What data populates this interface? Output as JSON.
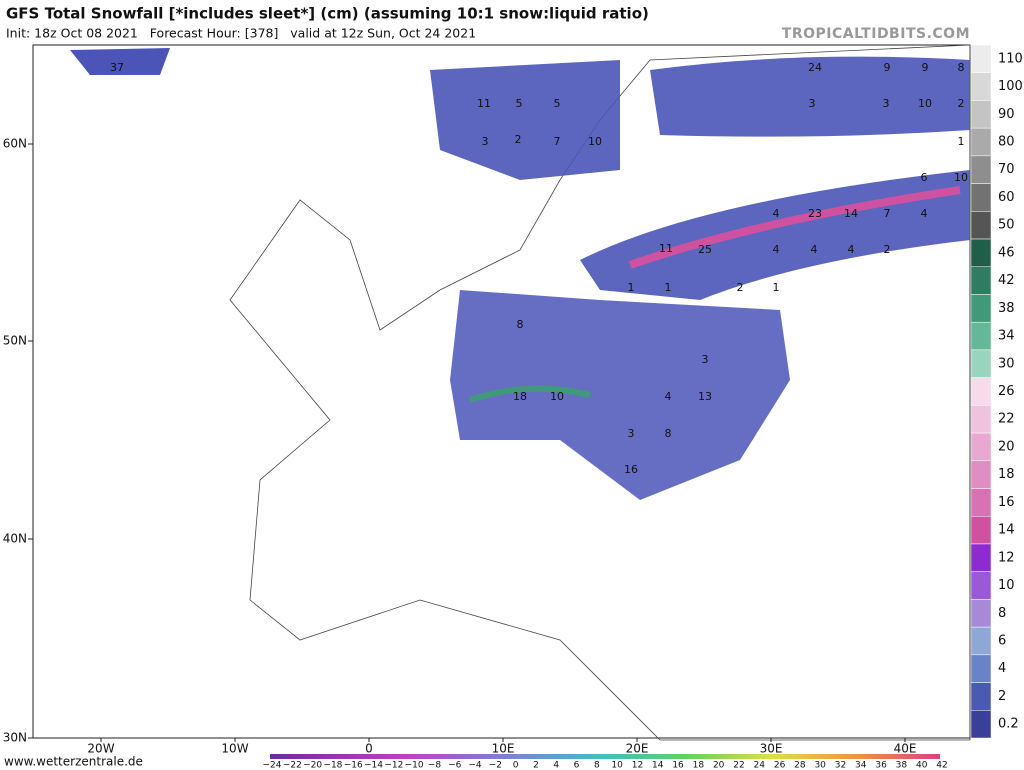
{
  "header": {
    "title": "GFS Total Snowfall [*includes sleet*] (cm) (assuming 10:1 snow:liquid ratio)",
    "subtitle": "Init: 18z Oct 08 2021   Forecast Hour: [378]   valid at 12z Sun, Oct 24 2021",
    "watermark": "TROPICALTIDBITS.COM"
  },
  "map": {
    "lat_labels": [
      "60N",
      "50N",
      "40N",
      "30N"
    ],
    "lon_labels": [
      "20W",
      "10W",
      "0",
      "10E",
      "20E",
      "30E",
      "40E"
    ],
    "point_labels": [
      "37",
      "11",
      "5",
      "5",
      "3",
      "2",
      "7",
      "10",
      "24",
      "9",
      "9",
      "8",
      "3",
      "3",
      "10",
      "2",
      "1",
      "6",
      "10",
      "4",
      "23",
      "14",
      "7",
      "4",
      "11",
      "25",
      "4",
      "4",
      "4",
      "2",
      "1",
      "1",
      "2",
      "1",
      "8",
      "3",
      "13",
      "4",
      "10",
      "18",
      "8",
      "3",
      "16"
    ]
  },
  "colorbar": {
    "labels": [
      "110",
      "100",
      "90",
      "80",
      "70",
      "60",
      "50",
      "46",
      "42",
      "38",
      "34",
      "30",
      "26",
      "22",
      "20",
      "18",
      "16",
      "14",
      "12",
      "10",
      "8",
      "6",
      "4",
      "2",
      "0.2"
    ],
    "colors": [
      "#ececec",
      "#d8d8d8",
      "#c4c4c4",
      "#aaaaaa",
      "#8e8e8e",
      "#727272",
      "#555555",
      "#1f5f4a",
      "#2e7d62",
      "#3f9a7a",
      "#63b898",
      "#99d4bc",
      "#f6dceb",
      "#efc2dd",
      "#e8a8cf",
      "#e08ec1",
      "#d872b2",
      "#cf52a0",
      "#8e2bd0",
      "#9a5ad8",
      "#a68ad8",
      "#8ea6d8",
      "#6a82c8",
      "#4a5ab2",
      "#3a3f9a"
    ]
  },
  "bottom_scale": {
    "labels": [
      "−24",
      "−22",
      "−20",
      "−18",
      "−16",
      "−14",
      "−12",
      "−10",
      "−8",
      "−6",
      "−4",
      "−2",
      "0",
      "2",
      "4",
      "6",
      "8",
      "10",
      "12",
      "14",
      "16",
      "18",
      "20",
      "22",
      "24",
      "26",
      "28",
      "30",
      "32",
      "34",
      "36",
      "38",
      "40",
      "42"
    ]
  },
  "footer": {
    "credit": "www.wetterzentrale.de"
  }
}
